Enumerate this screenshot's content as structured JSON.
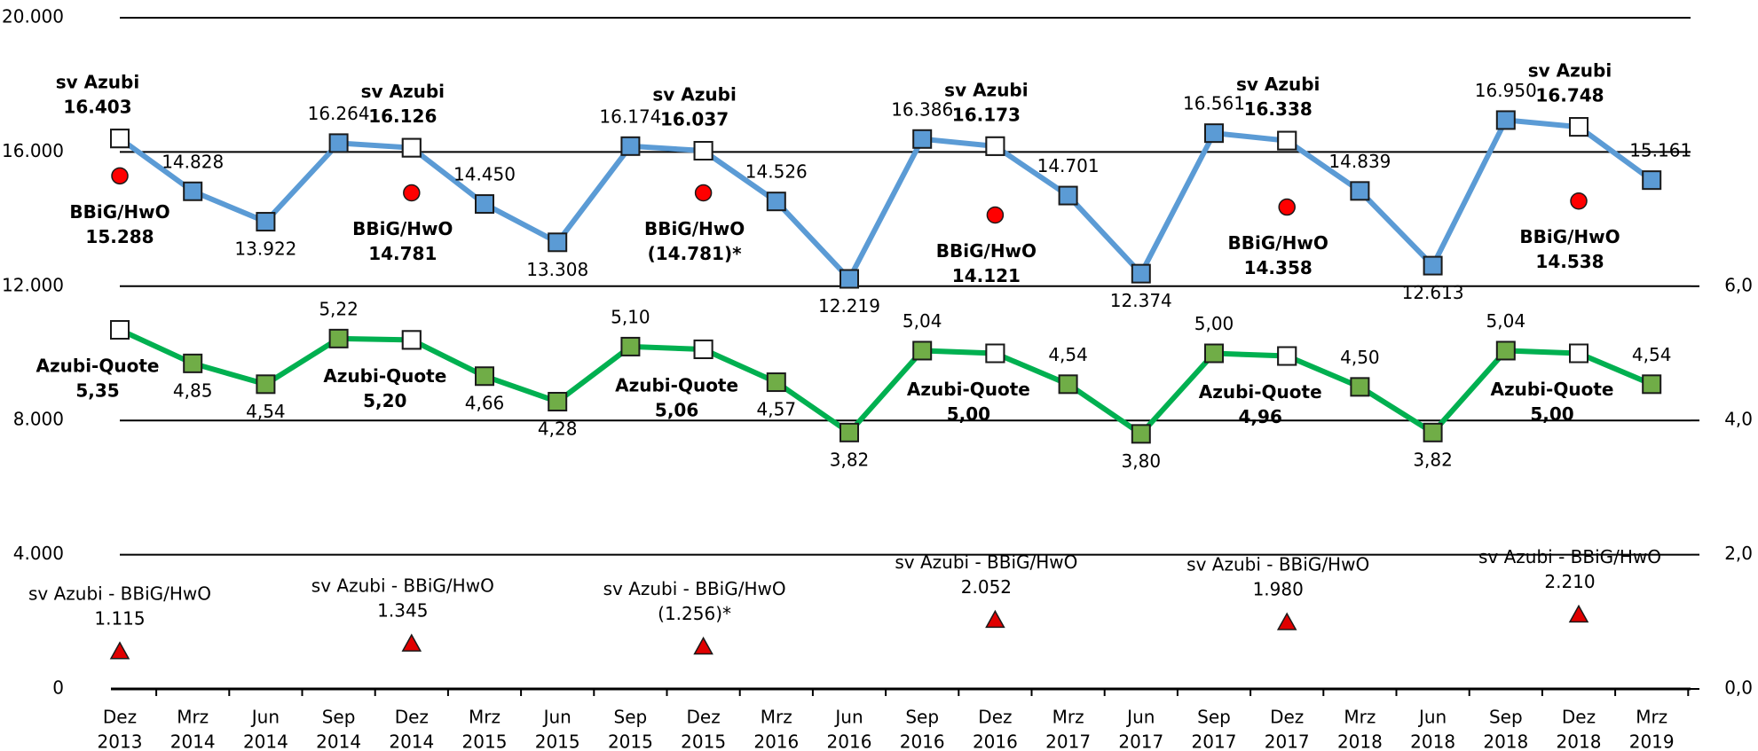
{
  "chart_data": {
    "type": "line",
    "categories": [
      [
        "Dez",
        "2013"
      ],
      [
        "Mrz",
        "2014"
      ],
      [
        "Jun",
        "2014"
      ],
      [
        "Sep",
        "2014"
      ],
      [
        "Dez",
        "2014"
      ],
      [
        "Mrz",
        "2015"
      ],
      [
        "Jun",
        "2015"
      ],
      [
        "Sep",
        "2015"
      ],
      [
        "Dez",
        "2015"
      ],
      [
        "Mrz",
        "2016"
      ],
      [
        "Jun",
        "2016"
      ],
      [
        "Sep",
        "2016"
      ],
      [
        "Dez",
        "2016"
      ],
      [
        "Mrz",
        "2017"
      ],
      [
        "Jun",
        "2017"
      ],
      [
        "Sep",
        "2017"
      ],
      [
        "Dez",
        "2017"
      ],
      [
        "Mrz",
        "2018"
      ],
      [
        "Jun",
        "2018"
      ],
      [
        "Sep",
        "2018"
      ],
      [
        "Dez",
        "2018"
      ],
      [
        "Mrz",
        "2019"
      ]
    ],
    "ylim": [
      0,
      20000
    ],
    "yticks": [
      0,
      {
        "value": 4000,
        "label": "4.000"
      },
      {
        "value": 8000,
        "label": "8.000"
      },
      {
        "value": 12000,
        "label": "12.000"
      },
      {
        "value": 16000,
        "label": "16.000"
      },
      {
        "value": 20000,
        "label": "20.000"
      }
    ],
    "y2lim": [
      0,
      10
    ],
    "y2ticks": [
      {
        "value": 0,
        "label": "0,0"
      },
      {
        "value": 2,
        "label": "2,0"
      },
      {
        "value": 4,
        "label": "4,0"
      },
      {
        "value": 6,
        "label": "6,0"
      }
    ],
    "grid": true,
    "series": [
      {
        "color": "#5b9bd5",
        "kind": "line",
        "values": [
          16403,
          14828,
          13922,
          16264,
          16126,
          14450,
          13308,
          16174,
          16037,
          14526,
          12219,
          16386,
          16173,
          14701,
          12374,
          16561,
          16338,
          14839,
          12613,
          16950,
          16748,
          15161
        ],
        "value_labels": [
          null,
          "14.828",
          "13.922",
          "16.264",
          null,
          "14.450",
          "13.308",
          "16.174",
          null,
          "14.526",
          "12.219",
          "16.386",
          null,
          "14.701",
          "12.374",
          "16.561",
          null,
          "14.839",
          "12.613",
          "16.950",
          null,
          "15.161"
        ]
      },
      {
        "name": "sv Azubi",
        "color": "#ffffff",
        "kind": "square",
        "values": [
          16403,
          null,
          null,
          null,
          16126,
          null,
          null,
          null,
          16037,
          null,
          null,
          null,
          16173,
          null,
          null,
          null,
          16338,
          null,
          null,
          null,
          16748,
          null
        ],
        "value_labels": [
          "16.403",
          null,
          null,
          null,
          "16.126",
          null,
          null,
          null,
          "16.037",
          null,
          null,
          null,
          "16.173",
          null,
          null,
          null,
          "16.338",
          null,
          null,
          null,
          "16.748",
          null
        ]
      },
      {
        "name": "BBiG/HwO",
        "color": "#ff0000",
        "kind": "circle",
        "values": [
          15288,
          null,
          null,
          null,
          14781,
          null,
          null,
          null,
          14781,
          null,
          null,
          null,
          14121,
          null,
          null,
          null,
          14358,
          null,
          null,
          null,
          14538,
          null
        ],
        "value_labels": [
          "15.288",
          null,
          null,
          null,
          "14.781",
          null,
          null,
          null,
          "(14.781)*",
          null,
          null,
          null,
          "14.121",
          null,
          null,
          null,
          "14.358",
          null,
          null,
          null,
          "14.538",
          null
        ]
      },
      {
        "color": "#70ad47",
        "line_color": "#00b050",
        "kind": "line",
        "axis": "y2",
        "values": [
          5.35,
          4.85,
          4.54,
          5.22,
          5.2,
          4.66,
          4.28,
          5.1,
          5.06,
          4.57,
          3.82,
          5.04,
          5.0,
          4.54,
          3.8,
          5.0,
          4.96,
          4.5,
          3.82,
          5.04,
          5.0,
          4.54
        ],
        "value_labels": [
          null,
          "4,85",
          "4,54",
          "5,22",
          null,
          "4,66",
          "4,28",
          "5,10",
          null,
          "4,57",
          "3,82",
          "5,04",
          null,
          "4,54",
          "3,80",
          "5,00",
          null,
          "4,50",
          "3,82",
          "5,04",
          null,
          "4,54"
        ]
      },
      {
        "name": "Azubi-Quote",
        "color": "#ffffff",
        "kind": "square",
        "axis": "y2",
        "values": [
          5.35,
          null,
          null,
          null,
          5.2,
          null,
          null,
          null,
          5.06,
          null,
          null,
          null,
          5.0,
          null,
          null,
          null,
          4.96,
          null,
          null,
          null,
          5.0,
          null
        ],
        "value_labels": [
          "5,35",
          null,
          null,
          null,
          "5,20",
          null,
          null,
          null,
          "5,06",
          null,
          null,
          null,
          "5,00",
          null,
          null,
          null,
          "4,96",
          null,
          null,
          null,
          "5,00",
          null
        ]
      },
      {
        "name": "sv Azubi - BBiG/HwO",
        "color": "#e00000",
        "kind": "triangle",
        "values": [
          1115,
          null,
          null,
          null,
          1345,
          null,
          null,
          null,
          1256,
          null,
          null,
          null,
          2052,
          null,
          null,
          null,
          1980,
          null,
          null,
          null,
          2210,
          null
        ],
        "value_labels": [
          "1.115",
          null,
          null,
          null,
          "1.345",
          null,
          null,
          null,
          "(1.256)*",
          null,
          null,
          null,
          "2.052",
          null,
          null,
          null,
          "1.980",
          null,
          null,
          null,
          "2.210",
          null
        ]
      }
    ]
  }
}
